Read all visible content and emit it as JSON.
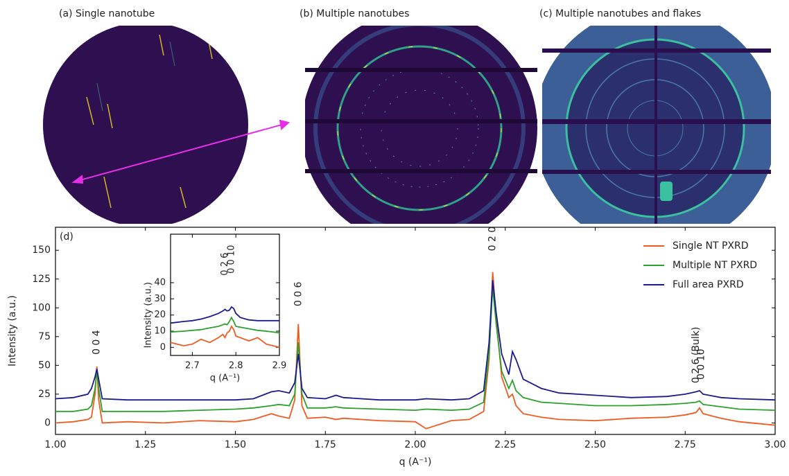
{
  "panels": [
    {
      "title": "(a) Single nanotube"
    },
    {
      "title": "(b) Multiple nanotubes"
    },
    {
      "title": "(c) Multiple nanotubes and flakes"
    }
  ],
  "chart_data": [
    {
      "type": "line",
      "panel_label": "(d)",
      "x_label": "q (A⁻¹)",
      "y_label": "Intensity (a.u.)",
      "x": [
        1.0,
        1.05,
        1.09,
        1.1,
        1.11,
        1.115,
        1.12,
        1.13,
        1.2,
        1.3,
        1.4,
        1.5,
        1.55,
        1.6,
        1.62,
        1.65,
        1.665,
        1.675,
        1.685,
        1.7,
        1.75,
        1.78,
        1.8,
        1.9,
        2.0,
        2.03,
        2.1,
        2.15,
        2.19,
        2.205,
        2.215,
        2.225,
        2.24,
        2.26,
        2.27,
        2.28,
        2.3,
        2.35,
        2.4,
        2.5,
        2.6,
        2.7,
        2.75,
        2.78,
        2.79,
        2.8,
        2.85,
        2.9,
        3.0
      ],
      "series": [
        {
          "name": "Single NT PXRD",
          "color": "#f05a1e",
          "values": [
            0,
            1,
            3,
            5,
            25,
            49,
            20,
            0,
            1,
            0,
            2,
            1,
            3,
            8,
            6,
            4,
            20,
            86,
            15,
            4,
            5,
            3,
            4,
            2,
            1,
            -5,
            2,
            3,
            10,
            55,
            131,
            90,
            40,
            22,
            25,
            15,
            8,
            5,
            3,
            2,
            4,
            5,
            7,
            9,
            13,
            8,
            4,
            1,
            -2
          ]
        },
        {
          "name": "Multiple NT PXRD",
          "color": "#2ca02c",
          "values": [
            10,
            10,
            12,
            15,
            30,
            46,
            30,
            10,
            10,
            10,
            11,
            12,
            13,
            15,
            16,
            15,
            25,
            70,
            25,
            13,
            13,
            14,
            13,
            12,
            11,
            12,
            11,
            12,
            18,
            60,
            118,
            85,
            45,
            30,
            37,
            28,
            22,
            18,
            17,
            15,
            15,
            16,
            17,
            18,
            19,
            16,
            14,
            12,
            11
          ]
        },
        {
          "name": "Full area PXRD",
          "color": "#1a1a8c",
          "values": [
            21,
            22,
            25,
            30,
            40,
            47,
            38,
            21,
            20,
            20,
            20,
            20,
            21,
            27,
            28,
            26,
            35,
            60,
            30,
            22,
            21,
            24,
            22,
            20,
            20,
            21,
            20,
            21,
            28,
            70,
            124,
            95,
            60,
            42,
            62,
            55,
            38,
            30,
            26,
            24,
            22,
            23,
            25,
            27,
            28,
            25,
            22,
            21,
            20
          ]
        }
      ],
      "xlim": [
        1.0,
        3.0
      ],
      "ylim": [
        -10,
        170
      ],
      "xticks": [
        {
          "value": 1.0,
          "label": "1.00"
        },
        {
          "value": 1.25,
          "label": "1.25"
        },
        {
          "value": 1.5,
          "label": "1.50"
        },
        {
          "value": 1.75,
          "label": "1.75"
        },
        {
          "value": 2.0,
          "label": "2.00"
        },
        {
          "value": 2.25,
          "label": "2.25"
        },
        {
          "value": 2.5,
          "label": "2.50"
        },
        {
          "value": 2.75,
          "label": "2.75"
        },
        {
          "value": 3.0,
          "label": "3.00"
        }
      ],
      "yticks": [
        0,
        25,
        50,
        75,
        100,
        125,
        150
      ],
      "legend": "upper right",
      "annotations": [
        {
          "text": "0 0 4",
          "x": 1.115,
          "y": 70
        },
        {
          "text": "0 0 6",
          "x": 1.675,
          "y": 112
        },
        {
          "text": "0 2 0",
          "x": 2.215,
          "y": 160
        },
        {
          "text": "0 2 6 (Bulk)",
          "x": 2.78,
          "y": 59
        },
        {
          "text": "0 0 10",
          "x": 2.795,
          "y": 51
        }
      ]
    },
    {
      "type": "line",
      "x_label": "q (A⁻¹)",
      "y_label": "Intensity (a.u.)",
      "x": [
        2.65,
        2.68,
        2.7,
        2.72,
        2.74,
        2.76,
        2.77,
        2.775,
        2.78,
        2.785,
        2.79,
        2.795,
        2.8,
        2.81,
        2.83,
        2.85,
        2.87,
        2.9
      ],
      "series": [
        {
          "color": "#f05a1e",
          "values": [
            3,
            1,
            2,
            5,
            3,
            6,
            8,
            6,
            9,
            10,
            13,
            11,
            7,
            6,
            4,
            6,
            2,
            0
          ]
        },
        {
          "color": "#2ca02c",
          "values": [
            9.5,
            10,
            10.5,
            11,
            12,
            13,
            14,
            14.5,
            14,
            16,
            18.5,
            16,
            13,
            12.5,
            11.5,
            10.5,
            10,
            9
          ]
        },
        {
          "color": "#1a1a8c",
          "values": [
            15,
            16,
            16.5,
            17.5,
            19,
            21,
            22.5,
            23.5,
            22.5,
            23,
            25,
            24,
            21,
            18.5,
            17,
            16.5,
            16.5,
            16.5
          ]
        }
      ],
      "xlim": [
        2.65,
        2.9
      ],
      "ylim": [
        -5,
        70
      ],
      "xticks": [
        2.7,
        2.8,
        2.9
      ],
      "yticks": [
        0,
        10,
        20,
        30,
        40
      ],
      "annotations": [
        {
          "text": "0 2 6",
          "x": 2.775,
          "y": 51.5
        },
        {
          "text": "0 0 10",
          "x": 2.79,
          "y": 54.5
        }
      ]
    }
  ]
}
